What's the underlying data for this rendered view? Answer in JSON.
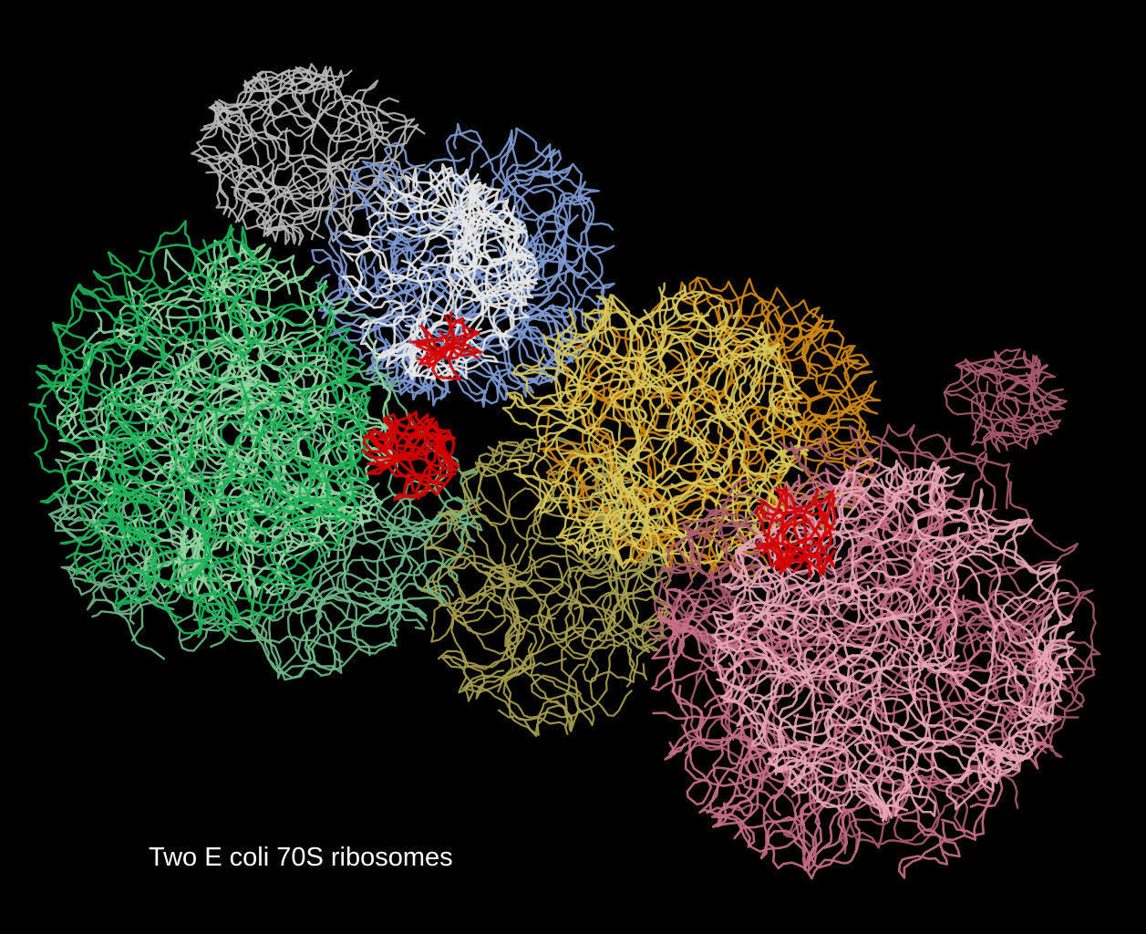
{
  "figure": {
    "caption": "Two E coli 70S ribosomes",
    "background": "#000000",
    "caption_color": "#ffffff",
    "palette": {
      "grey_subunit": "#b9b9b9",
      "white_subunit": "#e8e8e8",
      "blue_subunit": "#7f9bd4",
      "green_dark": "#1db45a",
      "green_light": "#8fd9a0",
      "green_mid": "#6fb98a",
      "orange_subunit": "#d08a12",
      "yellow_subunit": "#d8c85a",
      "olive_subunit": "#a8a050",
      "pink_light": "#e8a6b6",
      "pink_mid": "#c97088",
      "rose_dark": "#a85a70",
      "red_ligand": "#d40000"
    }
  }
}
